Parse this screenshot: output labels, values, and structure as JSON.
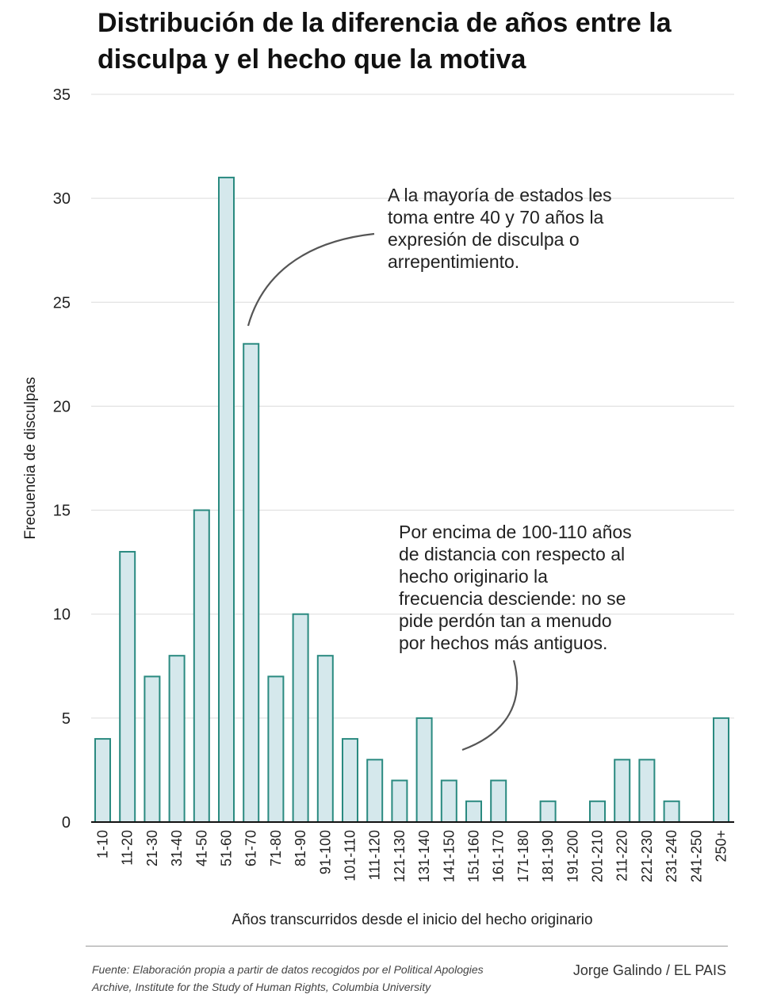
{
  "title": "Distribución de la diferencia de años entre la disculpa y el hecho que la motiva",
  "chart_data": {
    "type": "bar",
    "categories": [
      "1-10",
      "11-20",
      "21-30",
      "31-40",
      "41-50",
      "51-60",
      "61-70",
      "71-80",
      "81-90",
      "91-100",
      "101-110",
      "111-120",
      "121-130",
      "131-140",
      "141-150",
      "151-160",
      "161-170",
      "171-180",
      "181-190",
      "191-200",
      "201-210",
      "211-220",
      "221-230",
      "231-240",
      "241-250",
      "250+"
    ],
    "values": [
      4,
      13,
      7,
      8,
      15,
      31,
      23,
      7,
      10,
      8,
      4,
      3,
      2,
      5,
      2,
      1,
      2,
      0,
      1,
      0,
      1,
      3,
      3,
      1,
      0,
      5
    ],
    "xlabel": "Años transcurridos desde el inicio del hecho originario",
    "ylabel": "Frecuencia de disculpas",
    "ylim": [
      0,
      35
    ],
    "yticks": [
      0,
      5,
      10,
      15,
      20,
      25,
      30,
      35
    ],
    "grid": true,
    "bar_fill": "#d5e8ec",
    "bar_stroke": "#2a8a80",
    "annotations": [
      {
        "lines": [
          "A la mayoría de estados les",
          "toma entre 40 y 70 años la",
          "expresión de disculpa o",
          "arrepentimiento."
        ]
      },
      {
        "lines": [
          "Por encima de 100-110 años",
          "de distancia con respecto al",
          "hecho originario la",
          "frecuencia desciende: no se",
          "pide perdón tan a menudo",
          "por hechos más antiguos."
        ]
      }
    ]
  },
  "footer": {
    "source_line1": "Fuente: Elaboración propia a partir de datos recogidos por el Political Apologies",
    "source_line2": "Archive, Institute for the Study of Human Rights, Columbia University",
    "credit": "Jorge Galindo / EL PAIS"
  }
}
